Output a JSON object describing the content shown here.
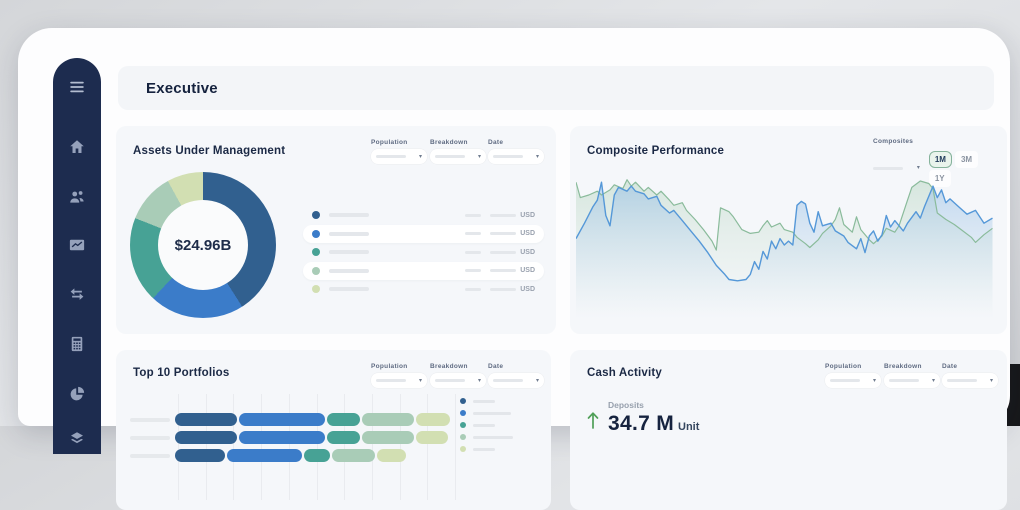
{
  "window": {
    "header_title": "Executive"
  },
  "colors": {
    "sidebar_bg": "#1d2c4f",
    "card_bg": "#f5f7fa",
    "navy": "#31608f",
    "blue": "#3b7cc9",
    "teal": "#47a295",
    "sage": "#a9ccb7",
    "lime": "#d2dfb2",
    "line_blue": "#5598d8",
    "line_green": "#8abb9b",
    "accent_green": "#4f9f57",
    "selected_range_bg": "#e9f3ec",
    "selected_range_border": "#85b29b"
  },
  "sidebar": {
    "icons": [
      "menu-icon",
      "home-icon",
      "clients-icon",
      "performance-icon",
      "transactions-icon",
      "calculator-icon",
      "allocation-pie-icon",
      "layers-icon"
    ]
  },
  "filter_labels": {
    "population": "Population",
    "breakdown": "Breakdown",
    "date": "Date"
  },
  "cards": {
    "aum": {
      "title": "Assets Under Management",
      "currency_label": "USD",
      "chart_data": {
        "type": "pie",
        "title": "Assets Under Management",
        "center_label": "$24.96B",
        "segments": [
          {
            "name": "segment-1",
            "color": "#31608f",
            "pct": 41
          },
          {
            "name": "segment-2",
            "color": "#3b7cc9",
            "pct": 21
          },
          {
            "name": "segment-3",
            "color": "#47a295",
            "pct": 19
          },
          {
            "name": "segment-4",
            "color": "#a9ccb7",
            "pct": 11
          },
          {
            "name": "segment-5",
            "color": "#d2dfb2",
            "pct": 8
          }
        ]
      }
    },
    "composite": {
      "title": "Composite Performance",
      "composites_label": "Composites",
      "ranges": [
        "1M",
        "3M",
        "1Y"
      ],
      "selected_range": "1M",
      "chart_data": {
        "type": "line",
        "x_range": [
          0,
          100
        ],
        "y_range": [
          0,
          100
        ],
        "grid": false,
        "series": [
          {
            "name": "series-green",
            "color": "#8abb9b",
            "points": [
              [
                0,
                8
              ],
              [
                1,
                20
              ],
              [
                3,
                18
              ],
              [
                5,
                15
              ],
              [
                6,
                18
              ],
              [
                8,
                14
              ],
              [
                9,
                10
              ],
              [
                11,
                13
              ],
              [
                12,
                6
              ],
              [
                13,
                11
              ],
              [
                14,
                8
              ],
              [
                16,
                15
              ],
              [
                17,
                12
              ],
              [
                19,
                18
              ],
              [
                20,
                15
              ],
              [
                22,
                22
              ],
              [
                23,
                26
              ],
              [
                25,
                24
              ],
              [
                26,
                30
              ],
              [
                28,
                37
              ],
              [
                30,
                45
              ],
              [
                32,
                54
              ],
              [
                33,
                61
              ],
              [
                34,
                28
              ],
              [
                36,
                31
              ],
              [
                37,
                35
              ],
              [
                39,
                45
              ],
              [
                41,
                48
              ],
              [
                43,
                47
              ],
              [
                44,
                42
              ],
              [
                45,
                38
              ],
              [
                46,
                43
              ],
              [
                48,
                40
              ],
              [
                49,
                45
              ],
              [
                51,
                47
              ],
              [
                52,
                51
              ],
              [
                54,
                56
              ],
              [
                55,
                59
              ],
              [
                57,
                53
              ],
              [
                58,
                48
              ],
              [
                60,
                42
              ],
              [
                61,
                37
              ],
              [
                62,
                28
              ],
              [
                63,
                41
              ],
              [
                65,
                47
              ],
              [
                66,
                35
              ],
              [
                67,
                45
              ],
              [
                69,
                53
              ],
              [
                70,
                56
              ],
              [
                72,
                50
              ],
              [
                73,
                44
              ],
              [
                75,
                47
              ],
              [
                76,
                42
              ],
              [
                78,
                22
              ],
              [
                79,
                12
              ],
              [
                81,
                7
              ],
              [
                83,
                9
              ],
              [
                84,
                13
              ],
              [
                85,
                32
              ],
              [
                87,
                37
              ],
              [
                89,
                41
              ],
              [
                91,
                46
              ],
              [
                93,
                51
              ],
              [
                94,
                55
              ],
              [
                96,
                49
              ],
              [
                98,
                44
              ]
            ]
          },
          {
            "name": "series-blue",
            "color": "#5598d8",
            "points": [
              [
                0,
                52
              ],
              [
                2,
                40
              ],
              [
                4,
                27
              ],
              [
                5,
                22
              ],
              [
                6,
                8
              ],
              [
                7,
                34
              ],
              [
                8,
                42
              ],
              [
                9,
                18
              ],
              [
                10,
                12
              ],
              [
                12,
                15
              ],
              [
                13,
                11
              ],
              [
                14,
                15
              ],
              [
                16,
                17
              ],
              [
                17,
                21
              ],
              [
                19,
                19
              ],
              [
                20,
                26
              ],
              [
                22,
                32
              ],
              [
                23,
                30
              ],
              [
                25,
                38
              ],
              [
                27,
                46
              ],
              [
                29,
                54
              ],
              [
                31,
                63
              ],
              [
                33,
                73
              ],
              [
                35,
                80
              ],
              [
                36,
                84
              ],
              [
                38,
                85
              ],
              [
                40,
                84
              ],
              [
                41,
                80
              ],
              [
                42,
                70
              ],
              [
                43,
                76
              ],
              [
                44,
                62
              ],
              [
                45,
                68
              ],
              [
                46,
                54
              ],
              [
                47,
                60
              ],
              [
                48,
                52
              ],
              [
                49,
                57
              ],
              [
                50,
                54
              ],
              [
                51,
                57
              ],
              [
                52,
                26
              ],
              [
                53,
                23
              ],
              [
                54,
                25
              ],
              [
                55,
                40
              ],
              [
                56,
                47
              ],
              [
                57,
                31
              ],
              [
                58,
                42
              ],
              [
                60,
                40
              ],
              [
                61,
                46
              ],
              [
                63,
                50
              ],
              [
                64,
                55
              ],
              [
                66,
                60
              ],
              [
                67,
                52
              ],
              [
                68,
                63
              ],
              [
                69,
                50
              ],
              [
                70,
                46
              ],
              [
                71,
                54
              ],
              [
                72,
                49
              ],
              [
                73,
                34
              ],
              [
                74,
                43
              ],
              [
                75,
                38
              ],
              [
                77,
                46
              ],
              [
                78,
                40
              ],
              [
                80,
                31
              ],
              [
                81,
                36
              ],
              [
                82,
                27
              ],
              [
                84,
                11
              ],
              [
                85,
                20
              ],
              [
                86,
                14
              ],
              [
                87,
                24
              ],
              [
                88,
                21
              ],
              [
                90,
                27
              ],
              [
                92,
                33
              ],
              [
                94,
                30
              ],
              [
                96,
                40
              ],
              [
                98,
                36
              ]
            ]
          }
        ]
      }
    },
    "portfolios": {
      "title": "Top 10 Portfolios",
      "chart_data": {
        "type": "bar",
        "orientation": "horizontal",
        "stacked": true,
        "segment_colors": [
          "#31608f",
          "#3b7cc9",
          "#47a295",
          "#a9ccb7",
          "#d2dfb2"
        ],
        "rows": [
          {
            "widths": [
              62,
              86,
              33,
              52,
              34
            ]
          },
          {
            "widths": [
              62,
              86,
              33,
              52,
              32
            ]
          },
          {
            "widths": [
              50,
              75,
              26,
              43,
              29
            ]
          }
        ],
        "legend_bar_widths": [
          22,
          38,
          22,
          40,
          22
        ],
        "gridline_count": 11
      }
    },
    "cash": {
      "title": "Cash Activity",
      "metric": {
        "label": "Deposits",
        "value": "34.7 M",
        "unit": "Unit",
        "direction": "up"
      }
    }
  }
}
